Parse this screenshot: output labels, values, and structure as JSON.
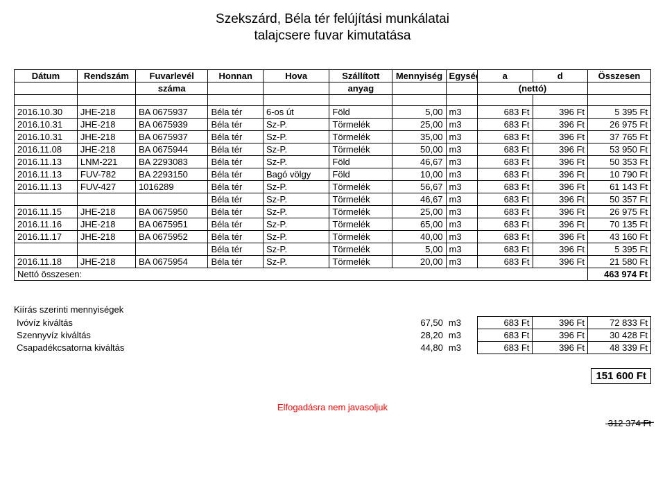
{
  "title": {
    "line1": "Szekszárd, Béla tér felújítási munkálatai",
    "line2": "talajcsere fuvar kimutatása"
  },
  "headers": {
    "row1": [
      "Dátum",
      "Rendszám",
      "Fuvarlevél",
      "Honnan",
      "Hova",
      "Szállított",
      "Mennyiség",
      "Egység",
      "a",
      "d",
      "Összesen"
    ],
    "row2": [
      "",
      "",
      "száma",
      "",
      "",
      "anyag",
      "",
      "",
      "(nettó)",
      "",
      ""
    ]
  },
  "rows": [
    {
      "date": "2016.10.30",
      "rend": "JHE-218",
      "fuv": "BA 0675937",
      "hon": "Béla tér",
      "hova": "6-os út",
      "anyag": "Föld",
      "menny": "5,00",
      "egys": "m3",
      "a": "683 Ft",
      "d": "396 Ft",
      "ossz": "5 395 Ft"
    },
    {
      "date": "2016.10.31",
      "rend": "JHE-218",
      "fuv": "BA 0675939",
      "hon": "Béla tér",
      "hova": "Sz-P.",
      "anyag": "Törmelék",
      "menny": "25,00",
      "egys": "m3",
      "a": "683 Ft",
      "d": "396 Ft",
      "ossz": "26 975 Ft"
    },
    {
      "date": "2016.10.31",
      "rend": "JHE-218",
      "fuv": "BA 0675937",
      "hon": "Béla tér",
      "hova": "Sz-P.",
      "anyag": "Törmelék",
      "menny": "35,00",
      "egys": "m3",
      "a": "683 Ft",
      "d": "396 Ft",
      "ossz": "37 765 Ft"
    },
    {
      "date": "2016.11.08",
      "rend": "JHE-218",
      "fuv": "BA 0675944",
      "hon": "Béla tér",
      "hova": "Sz-P.",
      "anyag": "Törmelék",
      "menny": "50,00",
      "egys": "m3",
      "a": "683 Ft",
      "d": "396 Ft",
      "ossz": "53 950 Ft"
    },
    {
      "date": "2016.11.13",
      "rend": "LNM-221",
      "fuv": "BA 2293083",
      "hon": "Béla tér",
      "hova": "Sz-P.",
      "anyag": "Föld",
      "menny": "46,67",
      "egys": "m3",
      "a": "683 Ft",
      "d": "396 Ft",
      "ossz": "50 353 Ft"
    },
    {
      "date": "2016.11.13",
      "rend": "FUV-782",
      "fuv": "BA 2293150",
      "hon": "Béla tér",
      "hova": "Bagó völgy",
      "anyag": "Föld",
      "menny": "10,00",
      "egys": "m3",
      "a": "683 Ft",
      "d": "396 Ft",
      "ossz": "10 790 Ft"
    },
    {
      "date": "2016.11.13",
      "rend": "FUV-427",
      "fuv": "1016289",
      "hon": "Béla tér",
      "hova": "Sz-P.",
      "anyag": "Törmelék",
      "menny": "56,67",
      "egys": "m3",
      "a": "683 Ft",
      "d": "396 Ft",
      "ossz": "61 143 Ft"
    },
    {
      "date": "",
      "rend": "",
      "fuv": "",
      "hon": "Béla tér",
      "hova": "Sz-P.",
      "anyag": "Törmelék",
      "menny": "46,67",
      "egys": "m3",
      "a": "683 Ft",
      "d": "396 Ft",
      "ossz": "50 357 Ft"
    },
    {
      "date": "2016.11.15",
      "rend": "JHE-218",
      "fuv": "BA 0675950",
      "hon": "Béla tér",
      "hova": "Sz-P.",
      "anyag": "Törmelék",
      "menny": "25,00",
      "egys": "m3",
      "a": "683 Ft",
      "d": "396 Ft",
      "ossz": "26 975 Ft"
    },
    {
      "date": "2016.11.16",
      "rend": "JHE-218",
      "fuv": "BA 0675951",
      "hon": "Béla tér",
      "hova": "Sz-P.",
      "anyag": "Törmelék",
      "menny": "65,00",
      "egys": "m3",
      "a": "683 Ft",
      "d": "396 Ft",
      "ossz": "70 135 Ft"
    },
    {
      "date": "2016.11.17",
      "rend": "JHE-218",
      "fuv": "BA 0675952",
      "hon": "Béla tér",
      "hova": "Sz-P.",
      "anyag": "Törmelék",
      "menny": "40,00",
      "egys": "m3",
      "a": "683 Ft",
      "d": "396 Ft",
      "ossz": "43 160 Ft"
    },
    {
      "date": "",
      "rend": "",
      "fuv": "",
      "hon": "Béla tér",
      "hova": "Sz-P.",
      "anyag": "Törmelék",
      "menny": "5,00",
      "egys": "m3",
      "a": "683 Ft",
      "d": "396 Ft",
      "ossz": "5 395 Ft"
    },
    {
      "date": "2016.11.18",
      "rend": "JHE-218",
      "fuv": "BA 0675954",
      "hon": "Béla tér",
      "hova": "Sz-P.",
      "anyag": "Törmelék",
      "menny": "20,00",
      "egys": "m3",
      "a": "683 Ft",
      "d": "396 Ft",
      "ossz": "21 580 Ft"
    }
  ],
  "netto": {
    "label": "Nettó összesen:",
    "value": "463 974 Ft"
  },
  "summary": {
    "heading": "Kiírás szerinti mennyiségek",
    "rows": [
      {
        "label": "Ivóvíz kiváltás",
        "menny": "67,50",
        "egys": "m3",
        "a": "683 Ft",
        "d": "396 Ft",
        "ossz": "72 833 Ft"
      },
      {
        "label": "Szennyvíz kiváltás",
        "menny": "28,20",
        "egys": "m3",
        "a": "683 Ft",
        "d": "396 Ft",
        "ossz": "30 428 Ft"
      },
      {
        "label": "Csapadékcsatorna kiváltás",
        "menny": "44,80",
        "egys": "m3",
        "a": "683 Ft",
        "d": "396 Ft",
        "ossz": "48 339 Ft"
      }
    ],
    "total": "151 600 Ft"
  },
  "recommend": "Elfogadásra nem javasoljuk",
  "strike": "312 374 Ft",
  "colors": {
    "border": "#000000",
    "text": "#000000",
    "recommend": "#ff0000",
    "background": "#ffffff"
  },
  "fonts": {
    "body_pt": 13,
    "title_pt": 19
  }
}
